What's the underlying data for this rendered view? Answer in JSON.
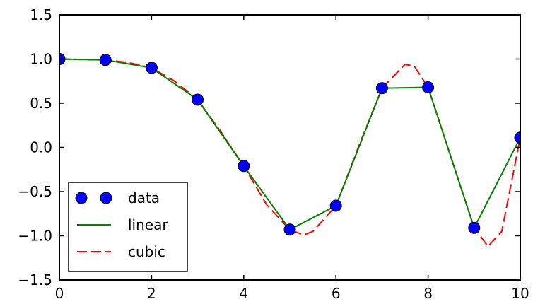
{
  "chart_data": {
    "type": "line",
    "title": "",
    "xlabel": "",
    "ylabel": "",
    "xlim": [
      0,
      10
    ],
    "ylim": [
      -1.5,
      1.5
    ],
    "x_ticks": [
      0,
      2,
      4,
      6,
      8,
      10
    ],
    "x_tick_labels": [
      "0",
      "2",
      "4",
      "6",
      "8",
      "10"
    ],
    "y_ticks": [
      -1.5,
      -1.0,
      -0.5,
      0.0,
      0.5,
      1.0,
      1.5
    ],
    "y_tick_labels": [
      "−1.5",
      "−1.0",
      "−0.5",
      "0.0",
      "0.5",
      "1.0",
      "1.5"
    ],
    "grid": false,
    "legend_position": "lower-left",
    "series": [
      {
        "name": "data",
        "style": "markers",
        "color": "#0000ff",
        "x": [
          0,
          1,
          2,
          3,
          4,
          5,
          6,
          7,
          8,
          9,
          10
        ],
        "y": [
          1.0,
          0.99,
          0.9,
          0.54,
          -0.21,
          -0.93,
          -0.66,
          0.67,
          0.68,
          -0.91,
          0.11
        ]
      },
      {
        "name": "linear",
        "style": "solid",
        "color": "#008000",
        "x": [
          0,
          1,
          2,
          3,
          4,
          5,
          6,
          7,
          8,
          9,
          10
        ],
        "y": [
          1.0,
          0.99,
          0.9,
          0.54,
          -0.21,
          -0.93,
          -0.66,
          0.67,
          0.68,
          -0.91,
          0.11
        ]
      },
      {
        "name": "cubic",
        "style": "dashed",
        "color": "#ff0000",
        "x": [
          0,
          0.5,
          1,
          1.5,
          2,
          2.5,
          3,
          3.5,
          4,
          4.5,
          5,
          5.3,
          5.5,
          6,
          6.5,
          7,
          7.5,
          7.7,
          8,
          8.5,
          9,
          9.3,
          9.6,
          10
        ],
        "y": [
          1.0,
          0.995,
          0.99,
          0.96,
          0.9,
          0.75,
          0.54,
          0.18,
          -0.21,
          -0.65,
          -0.93,
          -0.99,
          -0.95,
          -0.66,
          0.02,
          0.67,
          0.94,
          0.92,
          0.68,
          -0.12,
          -0.91,
          -1.12,
          -0.95,
          0.11
        ]
      }
    ]
  }
}
